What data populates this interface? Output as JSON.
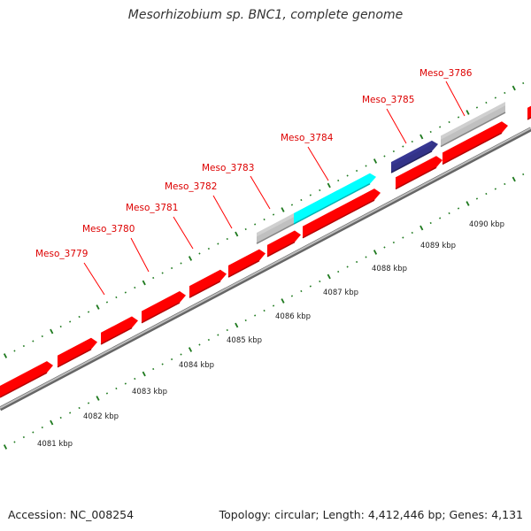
{
  "title": "Mesorhizobium sp. BNC1, complete genome",
  "footer": {
    "accession": "Accession: NC_008254",
    "summary": "Topology: circular; Length: 4,412,446 bp; Genes: 4,131"
  },
  "colors": {
    "gene": "#ff0000",
    "gene_label": "#dd0000",
    "backbone": "#888888",
    "ticks": "#1f7a1f",
    "highlight_cyan": "#00ffff",
    "highlight_navy": "#333388",
    "grey_feature": "#c0c0c0"
  },
  "scale_labels": [
    "4081 kbp",
    "4082 kbp",
    "4083 kbp",
    "4084 kbp",
    "4085 kbp",
    "4086 kbp",
    "4087 kbp",
    "4088 kbp",
    "4089 kbp",
    "4090 kbp"
  ],
  "gene_labels": [
    "Meso_3779",
    "Meso_3780",
    "Meso_3781",
    "Meso_3782",
    "Meso_3783",
    "Meso_3784",
    "Meso_3785",
    "Meso_3786"
  ]
}
